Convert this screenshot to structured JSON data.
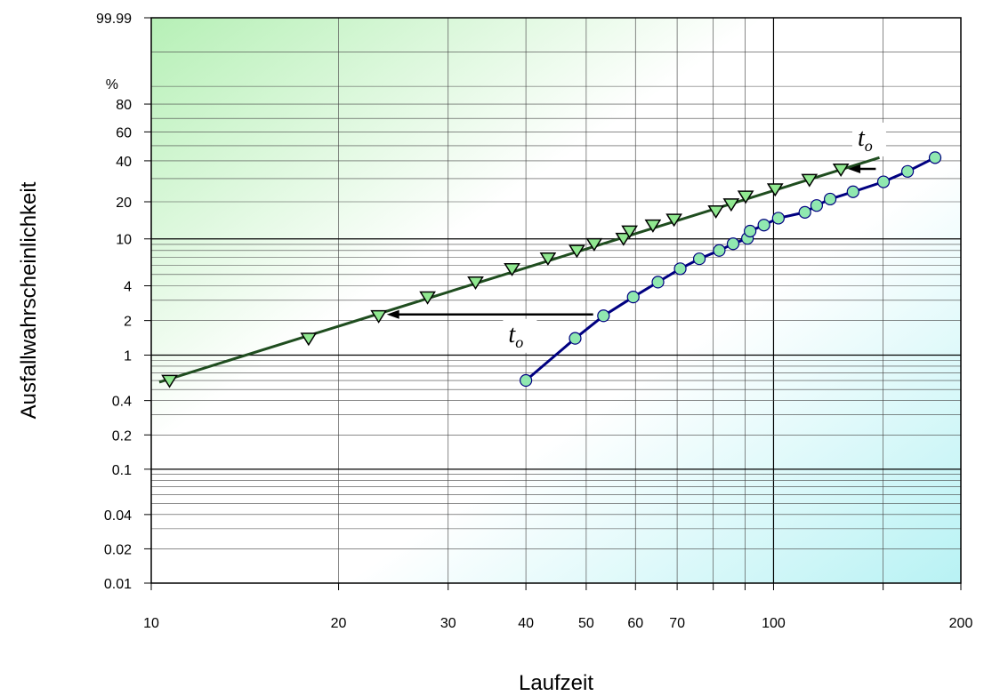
{
  "chart_data": {
    "type": "scatter",
    "x_scale": "log",
    "y_scale": "weibull",
    "xlim": [
      10,
      200
    ],
    "ylim": [
      0.01,
      99.99
    ],
    "grid": true,
    "xlabel": "Laufzeit",
    "ylabel": "Ausfallwahrscheinlichkeit",
    "y_unit_label": "%",
    "x_tick_labels": [
      10,
      20,
      30,
      40,
      50,
      60,
      70,
      100,
      200
    ],
    "y_tick_labels": [
      "0.01",
      "0.02",
      "0.04",
      "0.1",
      "0.2",
      "0.4",
      "1",
      "2",
      "4",
      "10",
      "20",
      "40",
      "60",
      "80",
      "99.99"
    ],
    "series": [
      {
        "marker": "triangle-down",
        "line_color": "#1f4d1f",
        "marker_color": "#90e890",
        "points": [
          [
            10.7,
            0.6
          ],
          [
            17.9,
            1.4
          ],
          [
            23.2,
            2.2
          ],
          [
            27.8,
            3.2
          ],
          [
            33.2,
            4.3
          ],
          [
            38,
            5.6
          ],
          [
            43.4,
            6.9
          ],
          [
            48.3,
            8.0
          ],
          [
            51.5,
            9.1
          ],
          [
            57.4,
            10.1
          ],
          [
            58.7,
            11.6
          ],
          [
            64,
            13.0
          ],
          [
            69.2,
            14.5
          ],
          [
            80.8,
            16.9
          ],
          [
            85.5,
            19.2
          ],
          [
            90.2,
            22.1
          ],
          [
            100.6,
            25.1
          ],
          [
            114.2,
            29.5
          ],
          [
            128.3,
            35.0
          ]
        ],
        "fit_line": [
          [
            10.3,
            0.58
          ],
          [
            148,
            42
          ]
        ]
      },
      {
        "marker": "circle",
        "line_color": "#000080",
        "marker_color": "#90e8b0",
        "points": [
          [
            40,
            0.6
          ],
          [
            48,
            1.4
          ],
          [
            53.3,
            2.2
          ],
          [
            59.5,
            3.2
          ],
          [
            65.2,
            4.3
          ],
          [
            70.8,
            5.6
          ],
          [
            76,
            6.8
          ],
          [
            81.8,
            8.0
          ],
          [
            86.1,
            9.1
          ],
          [
            90.8,
            10.1
          ],
          [
            91.7,
            11.6
          ],
          [
            96.5,
            13.0
          ],
          [
            101.8,
            14.8
          ],
          [
            112.3,
            16.5
          ],
          [
            117.3,
            18.7
          ],
          [
            123.3,
            21.0
          ],
          [
            134.2,
            23.9
          ],
          [
            150.2,
            28.4
          ],
          [
            164.2,
            33.8
          ],
          [
            181.8,
            42.0
          ]
        ]
      }
    ],
    "annotations": [
      {
        "type": "arrow",
        "from": [
          51.3,
          2.26
        ],
        "to": [
          23.9,
          2.26
        ]
      },
      {
        "type": "arrow",
        "from": [
          146,
          35.2
        ],
        "to": [
          131.7,
          35.2
        ]
      },
      {
        "type": "label",
        "text": "t",
        "sub": "o",
        "at": [
          39,
          1.3
        ]
      },
      {
        "type": "label",
        "text": "t",
        "sub": "o",
        "at": [
          142,
          50
        ]
      }
    ]
  }
}
